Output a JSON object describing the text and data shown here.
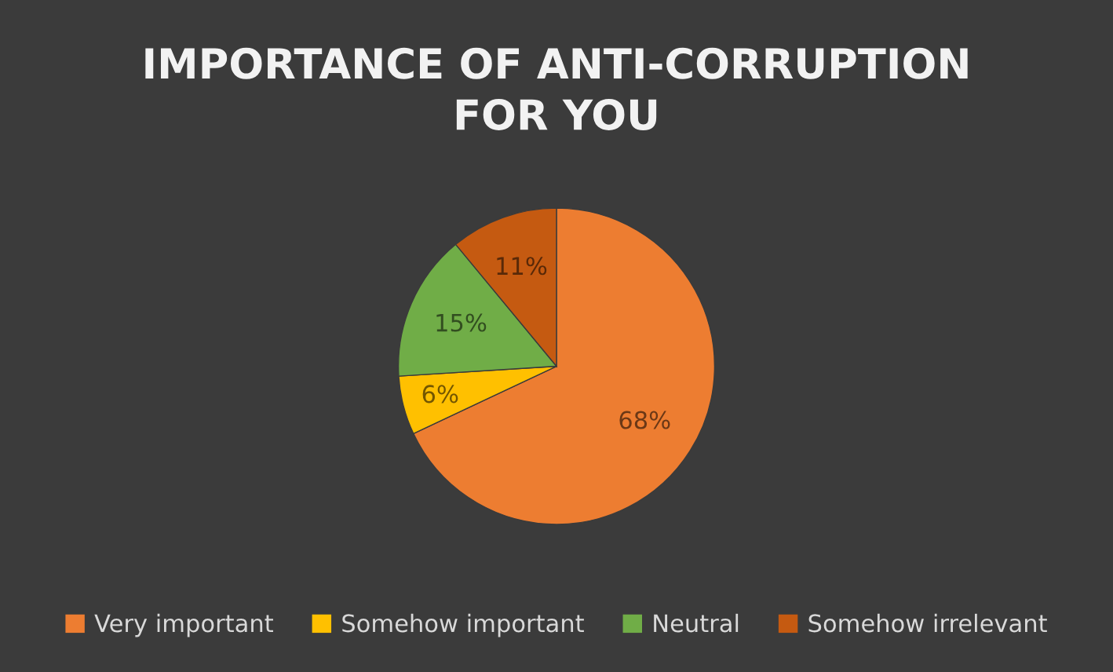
{
  "chart_data": {
    "type": "pie",
    "title": "IMPORTANCE OF ANTI-CORRUPTION\nFOR YOU",
    "categories": [
      "Very important",
      "Somehow important",
      "Neutral",
      "Somehow irrelevant"
    ],
    "values": [
      68,
      6,
      15,
      11
    ],
    "value_labels": [
      "68%",
      "6%",
      "15%",
      "11%"
    ],
    "colors": [
      "#ed7d31",
      "#ffc000",
      "#70ad47",
      "#c55a11"
    ],
    "legend": "bottom"
  }
}
